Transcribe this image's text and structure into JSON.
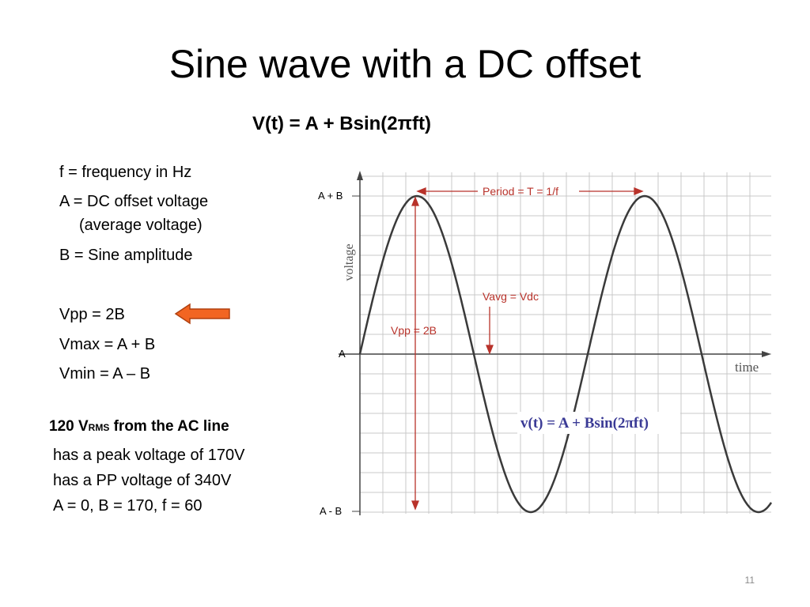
{
  "slide": {
    "title": "Sine wave with a DC offset",
    "formula": "V(t) = A + Bsin(2πft)",
    "definitions": [
      "f = frequency in Hz",
      "A = DC offset voltage",
      "(average voltage)",
      "B = Sine amplitude"
    ],
    "relations": [
      "Vpp = 2B",
      "Vmax = A + B",
      "Vmin = A – B"
    ],
    "example": {
      "heading": [
        "120 V",
        "RMS",
        " from the AC line"
      ],
      "lines": [
        "has a peak voltage of 170V",
        "has a PP voltage of 340V",
        "A = 0, B = 170, f = 60"
      ]
    },
    "figure": {
      "y_labels": [
        "A + B",
        "A",
        "A - B"
      ],
      "y_axis_title": "voltage",
      "x_axis_title": "time",
      "period_label": "Period = T = 1/f",
      "vavg_label": "Vavg = Vdc",
      "vpp_label": "Vpp = 2B",
      "equation": "v(t) = A + Bsin(2πft)"
    },
    "page_number": "11"
  }
}
